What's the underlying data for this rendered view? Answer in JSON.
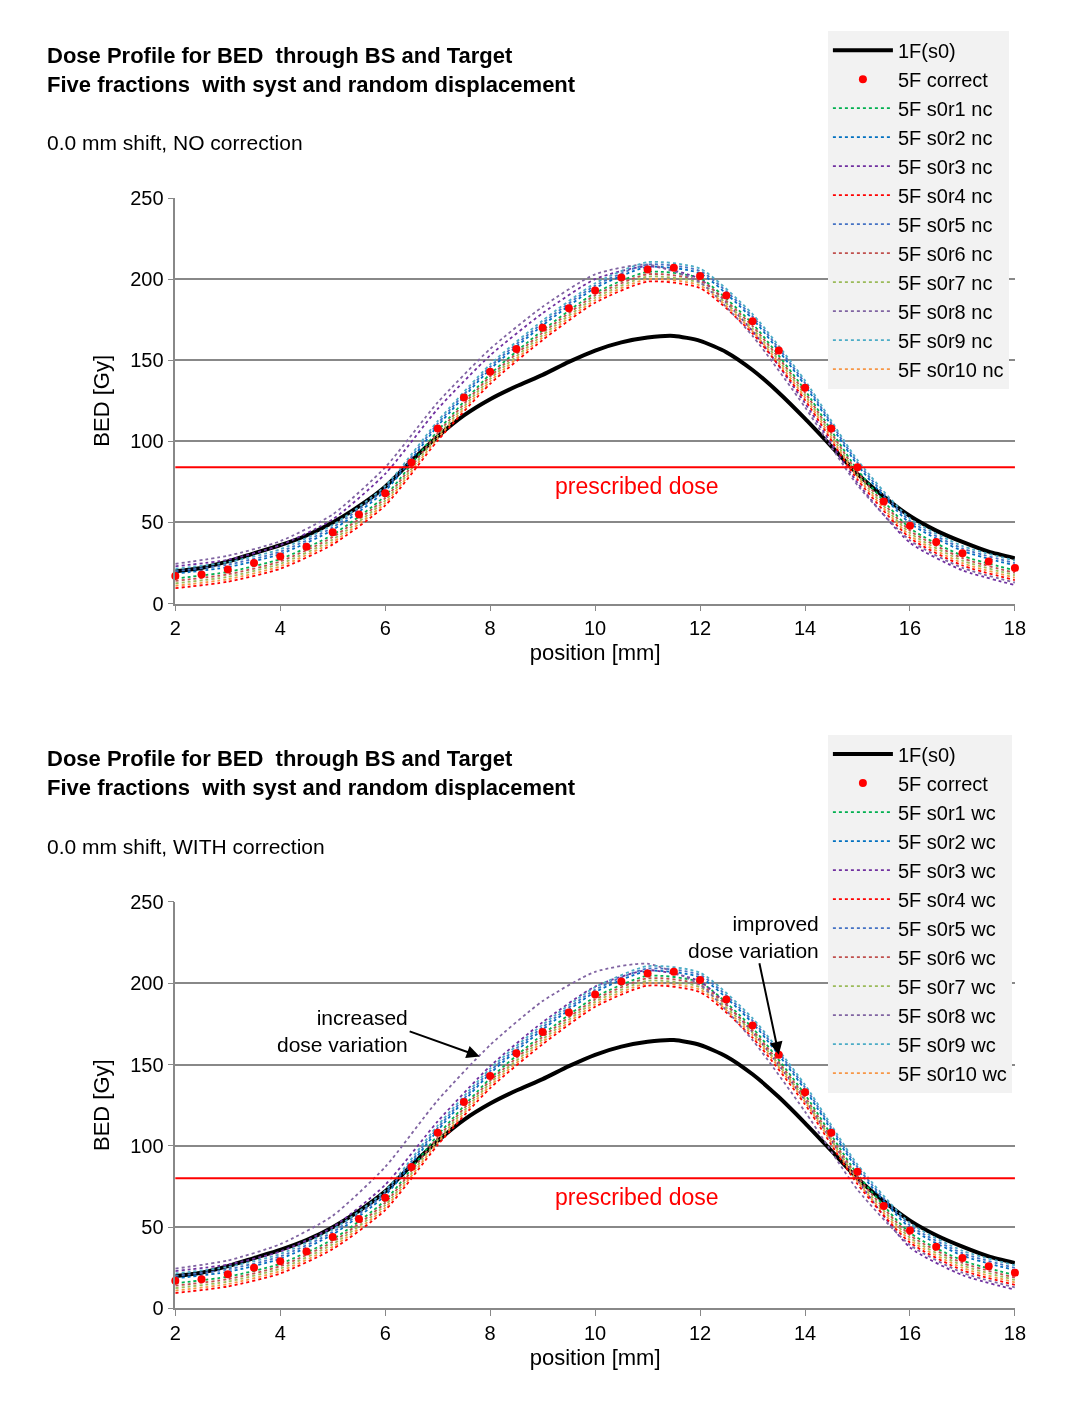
{
  "chart_data": [
    {
      "type": "line",
      "title": "Dose Profile for BED  through BS and Target\nFive fractions  with syst and random displacement",
      "subtitle": "0.0 mm shift, NO correction",
      "xlabel": "position [mm]",
      "ylabel": "BED [Gy]",
      "xlim": [
        2,
        18
      ],
      "ylim": [
        0,
        250
      ],
      "xticks": [
        2,
        4,
        6,
        8,
        10,
        12,
        14,
        16,
        18
      ],
      "yticks": [
        0,
        50,
        100,
        150,
        200,
        250
      ],
      "grid": "y",
      "legend": "top right",
      "ref_lines": [
        {
          "axis": "y",
          "value": 84,
          "label": "prescribed dose",
          "color": "#ff0000"
        }
      ],
      "series": [
        {
          "name": "1F(s0)",
          "color": "#000000",
          "line_style": "solid",
          "x": [
            2,
            2.5,
            3,
            3.5,
            4,
            4.5,
            5,
            5.5,
            6,
            6.5,
            7,
            7.5,
            8,
            8.5,
            9,
            9.5,
            10,
            10.5,
            11,
            11.5,
            12,
            12.5,
            13,
            13.5,
            14,
            14.5,
            15,
            15.5,
            16,
            16.5,
            17,
            17.5,
            18
          ],
          "values": [
            20,
            22,
            26,
            31,
            36,
            42,
            50,
            60,
            72,
            88,
            103,
            116,
            126,
            134,
            141,
            149,
            156,
            161,
            164,
            165,
            162,
            155,
            144,
            130,
            114,
            97,
            80,
            66,
            54,
            45,
            38,
            32,
            28
          ]
        },
        {
          "name": "5F correct",
          "color": "#ff0000",
          "type": "scatter",
          "marker": "circle",
          "x": [
            2,
            2.5,
            3,
            3.5,
            4,
            4.5,
            5,
            5.5,
            6,
            6.5,
            7,
            7.5,
            8,
            8.5,
            9,
            9.5,
            10,
            10.5,
            11,
            11.5,
            12,
            12.5,
            13,
            13.5,
            14,
            14.5,
            15,
            15.5,
            16,
            16.5,
            17,
            17.5,
            18
          ],
          "values": [
            17,
            18,
            21,
            25,
            29,
            35,
            44,
            55,
            68,
            87,
            108,
            127,
            143,
            157,
            170,
            182,
            193,
            201,
            206,
            207,
            202,
            190,
            174,
            156,
            133,
            108,
            84,
            63,
            48,
            38,
            31,
            26,
            22
          ]
        },
        {
          "name": "5F s0r1 nc",
          "color": "#00b050",
          "line_style": "dotted",
          "x": [
            2,
            3,
            4,
            5,
            6,
            7,
            8,
            9,
            10,
            11,
            12,
            13,
            14,
            15,
            16,
            17,
            18
          ],
          "values": [
            15.5,
            19.5,
            27.5,
            42.5,
            66.5,
            106.5,
            141.5,
            168.5,
            191.5,
            204.5,
            200.5,
            172.5,
            131.5,
            82.5,
            46.5,
            29.5,
            20.5
          ]
        },
        {
          "name": "5F s0r2 nc",
          "color": "#0070c0",
          "line_style": "dotted",
          "x": [
            2,
            3,
            4,
            5,
            6,
            7,
            8,
            9,
            10,
            11,
            12,
            13,
            14,
            15,
            16,
            17,
            18
          ],
          "values": [
            18.5,
            22.5,
            30.5,
            45.5,
            69.5,
            109.5,
            144.5,
            171.5,
            194.5,
            207.5,
            203.5,
            175.5,
            134.5,
            85.5,
            49.5,
            32.5,
            23.5
          ]
        },
        {
          "name": "5F s0r3 nc",
          "color": "#7030a0",
          "line_style": "dotted",
          "x": [
            2,
            3,
            4,
            5,
            6,
            7,
            8,
            9,
            10,
            11,
            12,
            13,
            14,
            15,
            16,
            17,
            18
          ],
          "values": [
            23,
            27,
            36,
            52,
            80,
            120,
            153,
            179,
            200,
            208,
            200,
            168,
            123.5,
            74.5,
            37.5,
            20.5,
            11.5
          ]
        },
        {
          "name": "5F s0r4 nc",
          "color": "#ff0000",
          "line_style": "dotted",
          "x": [
            2,
            3,
            4,
            5,
            6,
            7,
            8,
            9,
            10,
            11,
            12,
            13,
            14,
            15,
            16,
            17,
            18
          ],
          "values": [
            9.5,
            13.5,
            21.5,
            36.5,
            60.5,
            100.5,
            135.5,
            162.5,
            185.5,
            198.5,
            194.5,
            166.5,
            125.5,
            76.5,
            40.5,
            23.5,
            14.5
          ]
        },
        {
          "name": "5F s0r5 nc",
          "color": "#4472c4",
          "line_style": "dotted",
          "x": [
            2,
            3,
            4,
            5,
            6,
            7,
            8,
            9,
            10,
            11,
            12,
            13,
            14,
            15,
            16,
            17,
            18
          ],
          "values": [
            20,
            24,
            32,
            47,
            71,
            111,
            146,
            173,
            196,
            209,
            205,
            177,
            136,
            87,
            51,
            34,
            25
          ]
        },
        {
          "name": "5F s0r6 nc",
          "color": "#c0504d",
          "line_style": "dotted",
          "x": [
            2,
            3,
            4,
            5,
            6,
            7,
            8,
            9,
            10,
            11,
            12,
            13,
            14,
            15,
            16,
            17,
            18
          ],
          "values": [
            14,
            18,
            26,
            41,
            65,
            105,
            140,
            167,
            190,
            203,
            199,
            171,
            130,
            81,
            45,
            28,
            19
          ]
        },
        {
          "name": "5F s0r7 nc",
          "color": "#9bbb59",
          "line_style": "dotted",
          "x": [
            2,
            3,
            4,
            5,
            6,
            7,
            8,
            9,
            10,
            11,
            12,
            13,
            14,
            15,
            16,
            17,
            18
          ],
          "values": [
            12.5,
            16.5,
            24.5,
            39.5,
            63.5,
            103.5,
            138.5,
            165.5,
            188.5,
            201.5,
            197.5,
            169.5,
            128.5,
            79.5,
            43.5,
            26.5,
            17.5
          ]
        },
        {
          "name": "5F s0r8 nc",
          "color": "#8064a2",
          "line_style": "dotted",
          "x": [
            2,
            3,
            4,
            5,
            6,
            7,
            8,
            9,
            10,
            11,
            12,
            13,
            14,
            15,
            16,
            17,
            18
          ],
          "values": [
            24.5,
            29.5,
            38.5,
            55,
            84,
            124,
            157,
            183,
            203,
            209,
            198,
            165,
            121,
            73,
            39,
            22,
            13
          ]
        },
        {
          "name": "5F s0r9 nc",
          "color": "#4bacc6",
          "line_style": "dotted",
          "x": [
            2,
            3,
            4,
            5,
            6,
            7,
            8,
            9,
            10,
            11,
            12,
            13,
            14,
            15,
            16,
            17,
            18
          ],
          "values": [
            21.5,
            25.5,
            33.5,
            48.5,
            72.5,
            112.5,
            147.5,
            174.5,
            197.5,
            210.5,
            206.5,
            178.5,
            137.5,
            88.5,
            52.5,
            35.5,
            26.5
          ]
        },
        {
          "name": "5F s0r10 nc",
          "color": "#f79646",
          "line_style": "dotted",
          "x": [
            2,
            3,
            4,
            5,
            6,
            7,
            8,
            9,
            10,
            11,
            12,
            13,
            14,
            15,
            16,
            17,
            18
          ],
          "values": [
            11,
            15,
            23,
            38,
            62,
            102,
            137,
            164,
            187,
            200,
            196,
            168,
            127,
            78,
            42,
            25,
            16
          ]
        }
      ]
    },
    {
      "type": "line",
      "title": "Dose Profile for BED  through BS and Target\nFive fractions  with syst and random displacement",
      "subtitle": "0.0 mm shift, WITH correction",
      "xlabel": "position [mm]",
      "ylabel": "BED [Gy]",
      "xlim": [
        2,
        18
      ],
      "ylim": [
        0,
        250
      ],
      "xticks": [
        2,
        4,
        6,
        8,
        10,
        12,
        14,
        16,
        18
      ],
      "yticks": [
        0,
        50,
        100,
        150,
        200,
        250
      ],
      "grid": "y",
      "legend": "top right",
      "ref_lines": [
        {
          "axis": "y",
          "value": 80,
          "label": "prescribed dose",
          "color": "#ff0000"
        }
      ],
      "annotations": [
        {
          "text": "increased\ndose variation",
          "x": 7.8,
          "y": 155
        },
        {
          "text": "improved\ndose variation",
          "x": 13.5,
          "y": 156
        }
      ],
      "series": [
        {
          "name": "1F(s0)",
          "color": "#000000",
          "line_style": "solid",
          "x": [
            2,
            2.5,
            3,
            3.5,
            4,
            4.5,
            5,
            5.5,
            6,
            6.5,
            7,
            7.5,
            8,
            8.5,
            9,
            9.5,
            10,
            10.5,
            11,
            11.5,
            12,
            12.5,
            13,
            13.5,
            14,
            14.5,
            15,
            15.5,
            16,
            16.5,
            17,
            17.5,
            18
          ],
          "values": [
            20,
            22,
            26,
            31,
            36,
            42,
            50,
            60,
            72,
            88,
            103,
            116,
            126,
            134,
            141,
            149,
            156,
            161,
            164,
            165,
            162,
            155,
            144,
            130,
            114,
            97,
            80,
            66,
            54,
            45,
            38,
            32,
            28
          ]
        },
        {
          "name": "5F correct",
          "color": "#ff0000",
          "type": "scatter",
          "marker": "circle",
          "x": [
            2,
            2.5,
            3,
            3.5,
            4,
            4.5,
            5,
            5.5,
            6,
            6.5,
            7,
            7.5,
            8,
            8.5,
            9,
            9.5,
            10,
            10.5,
            11,
            11.5,
            12,
            12.5,
            13,
            13.5,
            14,
            14.5,
            15,
            15.5,
            16,
            16.5,
            17,
            17.5,
            18
          ],
          "values": [
            17,
            18,
            21,
            25,
            29,
            35,
            44,
            55,
            68,
            87,
            108,
            127,
            143,
            157,
            170,
            182,
            193,
            201,
            206,
            207,
            202,
            190,
            174,
            156,
            133,
            108,
            84,
            63,
            48,
            38,
            31,
            26,
            22
          ]
        },
        {
          "name": "5F s0r1 wc",
          "color": "#00b050",
          "line_style": "dotted",
          "x": [
            2,
            3,
            4,
            5,
            6,
            7,
            8,
            9,
            10,
            11,
            12,
            13,
            14,
            15,
            16,
            17,
            18
          ],
          "values": [
            15.5,
            19.5,
            27.5,
            42.5,
            66.5,
            106.5,
            141.5,
            168.5,
            191.5,
            204.5,
            200.5,
            172.5,
            131.5,
            82.5,
            46.5,
            29.5,
            20.5
          ]
        },
        {
          "name": "5F s0r2 wc",
          "color": "#0070c0",
          "line_style": "dotted",
          "x": [
            2,
            3,
            4,
            5,
            6,
            7,
            8,
            9,
            10,
            11,
            12,
            13,
            14,
            15,
            16,
            17,
            18
          ],
          "values": [
            18.5,
            22.5,
            30.5,
            45.5,
            69.5,
            109.5,
            144.5,
            171.5,
            194.5,
            207.5,
            203.5,
            175.5,
            134.5,
            85.5,
            49.5,
            32.5,
            23.5
          ]
        },
        {
          "name": "5F s0r3 wc",
          "color": "#7030a0",
          "line_style": "dotted",
          "x": [
            2,
            3,
            4,
            5,
            6,
            7,
            8,
            9,
            10,
            11,
            12,
            13,
            14,
            15,
            16,
            17,
            18
          ],
          "values": [
            23,
            27,
            35,
            50,
            76,
            115,
            149,
            176,
            198,
            208,
            201,
            170,
            128,
            79,
            37.5,
            20.5,
            11.5
          ]
        },
        {
          "name": "5F s0r4 wc",
          "color": "#ff0000",
          "line_style": "dotted",
          "x": [
            2,
            3,
            4,
            5,
            6,
            7,
            8,
            9,
            10,
            11,
            12,
            13,
            14,
            15,
            16,
            17,
            18
          ],
          "values": [
            9.5,
            13.5,
            21.5,
            36.5,
            60.5,
            100.5,
            135.5,
            162.5,
            185.5,
            198.5,
            194.5,
            166.5,
            125.5,
            76.5,
            40.5,
            23.5,
            14.5
          ]
        },
        {
          "name": "5F s0r5 wc",
          "color": "#4472c4",
          "line_style": "dotted",
          "x": [
            2,
            3,
            4,
            5,
            6,
            7,
            8,
            9,
            10,
            11,
            12,
            13,
            14,
            15,
            16,
            17,
            18
          ],
          "values": [
            20,
            24,
            32,
            47,
            71,
            111,
            146,
            173,
            196,
            209,
            205,
            177,
            136,
            87,
            51,
            34,
            25
          ]
        },
        {
          "name": "5F s0r6 wc",
          "color": "#c0504d",
          "line_style": "dotted",
          "x": [
            2,
            3,
            4,
            5,
            6,
            7,
            8,
            9,
            10,
            11,
            12,
            13,
            14,
            15,
            16,
            17,
            18
          ],
          "values": [
            14,
            18,
            26,
            41,
            65,
            105,
            140,
            167,
            190,
            203,
            199,
            171,
            130,
            81,
            45,
            28,
            19
          ]
        },
        {
          "name": "5F s0r7 wc",
          "color": "#9bbb59",
          "line_style": "dotted",
          "x": [
            2,
            3,
            4,
            5,
            6,
            7,
            8,
            9,
            10,
            11,
            12,
            13,
            14,
            15,
            16,
            17,
            18
          ],
          "values": [
            12.5,
            16.5,
            24.5,
            39.5,
            63.5,
            103.5,
            138.5,
            165.5,
            188.5,
            201.5,
            197.5,
            169.5,
            128.5,
            79.5,
            43.5,
            26.5,
            17.5
          ]
        },
        {
          "name": "5F s0r8 wc",
          "color": "#8064a2",
          "line_style": "dotted",
          "x": [
            2,
            3,
            4,
            5,
            6,
            7,
            8,
            9,
            10,
            11,
            12,
            13,
            14,
            15,
            16,
            17,
            18
          ],
          "values": [
            24.5,
            29.5,
            39.5,
            57,
            87,
            128,
            162,
            189,
            207,
            212,
            199,
            165,
            121,
            73,
            39,
            22,
            13
          ]
        },
        {
          "name": "5F s0r9 wc",
          "color": "#4bacc6",
          "line_style": "dotted",
          "x": [
            2,
            3,
            4,
            5,
            6,
            7,
            8,
            9,
            10,
            11,
            12,
            13,
            14,
            15,
            16,
            17,
            18
          ],
          "values": [
            21.5,
            25.5,
            33.5,
            48.5,
            72.5,
            112.5,
            147.5,
            174.5,
            197.5,
            210.5,
            206.5,
            178.5,
            137.5,
            88.5,
            52.5,
            35.5,
            26.5
          ]
        },
        {
          "name": "5F s0r10 wc",
          "color": "#f79646",
          "line_style": "dotted",
          "x": [
            2,
            3,
            4,
            5,
            6,
            7,
            8,
            9,
            10,
            11,
            12,
            13,
            14,
            15,
            16,
            17,
            18
          ],
          "values": [
            11,
            15,
            23,
            38,
            62,
            102,
            137,
            164,
            187,
            200,
            196,
            168,
            127,
            78,
            42,
            25,
            16
          ]
        }
      ]
    }
  ]
}
